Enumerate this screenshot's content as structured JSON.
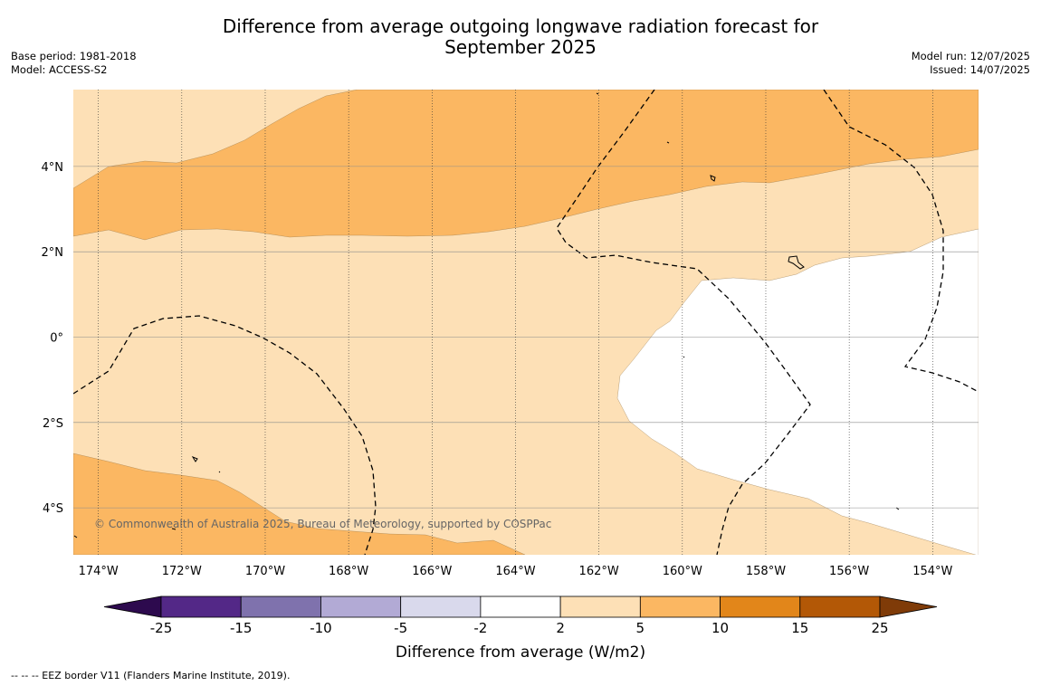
{
  "title_line1": "Difference from average outgoing longwave radiation forecast for",
  "title_line2": "September 2025",
  "meta_left": {
    "base_period": "Base period: 1981-2018",
    "model": "Model: ACCESS-S2"
  },
  "meta_right": {
    "model_run": "Model run: 12/07/2025",
    "issued": "Issued: 14/07/2025"
  },
  "map": {
    "lon_range": [
      -174.6,
      -152.9
    ],
    "lat_range": [
      -5.1,
      5.8
    ],
    "lat_ticks": [
      {
        "value": 4,
        "label": "4°N"
      },
      {
        "value": 2,
        "label": "2°N"
      },
      {
        "value": 0,
        "label": "0°"
      },
      {
        "value": -2,
        "label": "2°S"
      },
      {
        "value": -4,
        "label": "4°S"
      }
    ],
    "lon_ticks": [
      {
        "value": -174,
        "label": "174°W"
      },
      {
        "value": -172,
        "label": "172°W"
      },
      {
        "value": -170,
        "label": "170°W"
      },
      {
        "value": -168,
        "label": "168°W"
      },
      {
        "value": -166,
        "label": "166°W"
      },
      {
        "value": -164,
        "label": "164°W"
      },
      {
        "value": -162,
        "label": "162°W"
      },
      {
        "value": -160,
        "label": "160°W"
      },
      {
        "value": -158,
        "label": "158°W"
      },
      {
        "value": -156,
        "label": "156°W"
      },
      {
        "value": -154,
        "label": "154°W"
      }
    ],
    "copyright": "© Commonwealth of Australia 2025, Bureau of Meteorology, supported by COSPPac"
  },
  "colorbar": {
    "label": "Difference from average (W/m2)",
    "ticks": [
      "-25",
      "-15",
      "-10",
      "-5",
      "-2",
      "2",
      "5",
      "10",
      "15",
      "25"
    ],
    "colors": [
      "#2d0a4e",
      "#532887",
      "#7f72ad",
      "#b2aad5",
      "#d9d9ec",
      "#ffffff",
      "#fde0b6",
      "#fbb762",
      "#e2861a",
      "#b35806",
      "#7f3b08"
    ]
  },
  "footer": "--  --  -- EEZ border V11 (Flanders Marine Institute, 2019)."
}
